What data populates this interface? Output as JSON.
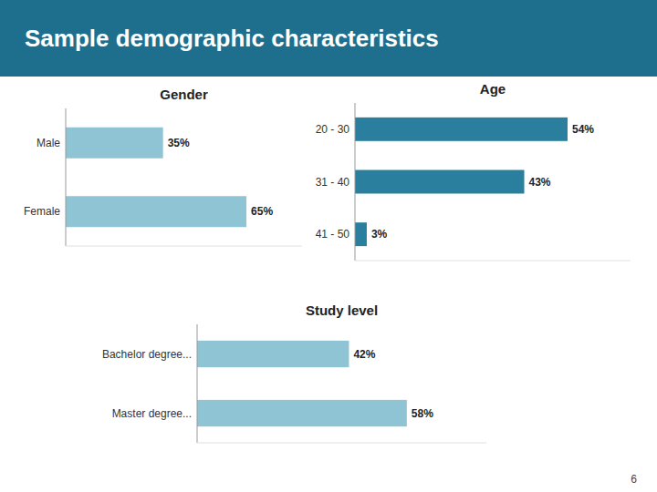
{
  "title": "Sample demographic characteristics",
  "annotations": [
    "6"
  ],
  "chart_data": [
    {
      "type": "bar",
      "orientation": "horizontal",
      "title": "Gender",
      "categories": [
        "Female",
        "Male"
      ],
      "values": [
        65,
        35
      ],
      "value_labels": [
        "65%",
        "35%"
      ],
      "color": "#8ec4d4",
      "xlim": [
        0,
        85
      ],
      "grid": false,
      "data_labels": true,
      "tick_labels": "y"
    },
    {
      "type": "bar",
      "orientation": "horizontal",
      "title": "Age",
      "categories": [
        "41 - 50",
        "31 - 40",
        "20 - 30"
      ],
      "values": [
        3,
        43,
        54
      ],
      "value_labels": [
        "3%",
        "43%",
        "54%"
      ],
      "color": "#2a7f9e",
      "xlim": [
        0,
        70
      ],
      "grid": false,
      "data_labels": true,
      "tick_labels": "y"
    },
    {
      "type": "bar",
      "orientation": "horizontal",
      "title": "Study level",
      "categories": [
        "Master degree...",
        "Bachelor degree..."
      ],
      "values": [
        58,
        42
      ],
      "value_labels": [
        "58%",
        "42%"
      ],
      "color": "#8ec4d4",
      "xlim": [
        0,
        80
      ],
      "grid": false,
      "data_labels": true,
      "tick_labels": "y"
    }
  ]
}
